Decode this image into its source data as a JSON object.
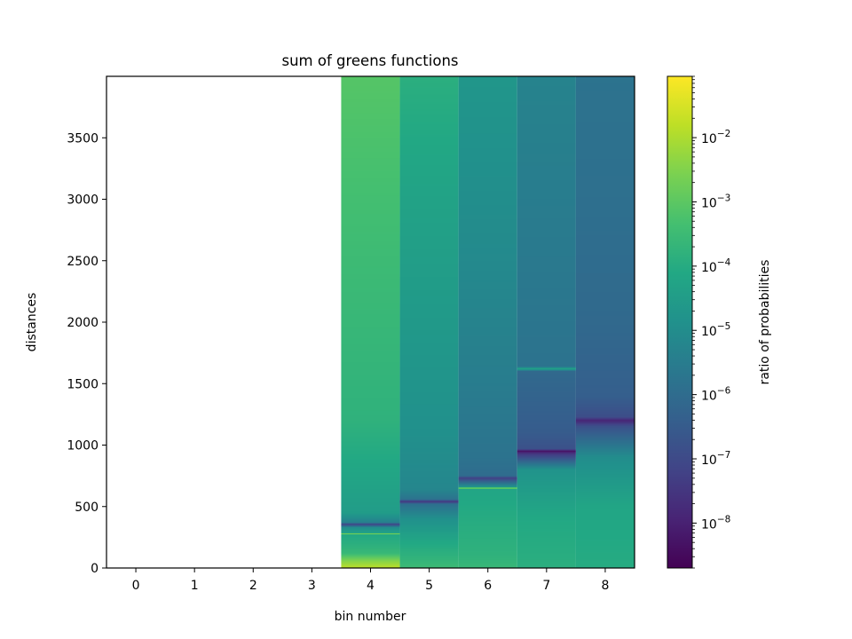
{
  "chart_data": {
    "type": "heatmap",
    "title": "sum of greens functions",
    "xlabel": "bin number",
    "ylabel": "distances",
    "x_ticks": [
      "0",
      "1",
      "2",
      "3",
      "4",
      "5",
      "6",
      "7",
      "8"
    ],
    "y_ticks": [
      "0",
      "500",
      "1000",
      "1500",
      "2000",
      "2500",
      "3000",
      "3500"
    ],
    "xlim": [
      -0.5,
      8.5
    ],
    "ylim": [
      0,
      4000
    ],
    "colormap": "viridis",
    "colorbar": {
      "label": "ratio of probabilities",
      "scale": "log",
      "range": [
        2e-09,
        0.09
      ],
      "ticks": [
        {
          "base": "10",
          "exp": "−2",
          "value": 0.01
        },
        {
          "base": "10",
          "exp": "−3",
          "value": 0.001
        },
        {
          "base": "10",
          "exp": "−4",
          "value": 0.0001
        },
        {
          "base": "10",
          "exp": "−5",
          "value": 1e-05
        },
        {
          "base": "10",
          "exp": "−6",
          "value": 1e-06
        },
        {
          "base": "10",
          "exp": "−7",
          "value": 1e-07
        },
        {
          "base": "10",
          "exp": "−8",
          "value": 1e-08
        }
      ]
    },
    "columns": [
      {
        "bin": 4,
        "profile": [
          [
            0,
            -1.8
          ],
          [
            60,
            -2.5
          ],
          [
            120,
            -3.6
          ],
          [
            200,
            -3.9
          ],
          [
            270,
            -4.1
          ],
          [
            280,
            -2.3
          ],
          [
            285,
            -4.3
          ],
          [
            330,
            -5.0
          ],
          [
            355,
            -7.2
          ],
          [
            370,
            -5.4
          ],
          [
            450,
            -4.5
          ],
          [
            1200,
            -3.8
          ],
          [
            2500,
            -3.5
          ],
          [
            4000,
            -3.1
          ]
        ]
      },
      {
        "bin": 5,
        "profile": [
          [
            0,
            -3.5
          ],
          [
            60,
            -3.7
          ],
          [
            200,
            -4.1
          ],
          [
            400,
            -4.9
          ],
          [
            520,
            -5.9
          ],
          [
            540,
            -7.5
          ],
          [
            560,
            -5.8
          ],
          [
            640,
            -5.2
          ],
          [
            1100,
            -4.9
          ],
          [
            2000,
            -4.6
          ],
          [
            3000,
            -4.3
          ],
          [
            4000,
            -3.9
          ]
        ]
      },
      {
        "bin": 6,
        "profile": [
          [
            0,
            -3.6
          ],
          [
            100,
            -3.8
          ],
          [
            400,
            -4.0
          ],
          [
            640,
            -4.2
          ],
          [
            650,
            -2.4
          ],
          [
            660,
            -4.8
          ],
          [
            710,
            -6.5
          ],
          [
            730,
            -7.3
          ],
          [
            750,
            -6.0
          ],
          [
            900,
            -5.8
          ],
          [
            1500,
            -5.5
          ],
          [
            2500,
            -5.1
          ],
          [
            4000,
            -4.7
          ]
        ]
      },
      {
        "bin": 7,
        "profile": [
          [
            0,
            -3.9
          ],
          [
            400,
            -4.1
          ],
          [
            800,
            -4.8
          ],
          [
            930,
            -7.5
          ],
          [
            950,
            -8.3
          ],
          [
            970,
            -6.8
          ],
          [
            1100,
            -6.5
          ],
          [
            1600,
            -6.1
          ],
          [
            1620,
            -4.3
          ],
          [
            1640,
            -5.8
          ],
          [
            2500,
            -5.6
          ],
          [
            4000,
            -5.3
          ]
        ]
      },
      {
        "bin": 8,
        "profile": [
          [
            0,
            -4.0
          ],
          [
            500,
            -4.2
          ],
          [
            900,
            -5.0
          ],
          [
            1150,
            -6.8
          ],
          [
            1200,
            -7.9
          ],
          [
            1230,
            -6.9
          ],
          [
            1400,
            -6.4
          ],
          [
            2000,
            -6.1
          ],
          [
            3000,
            -5.9
          ],
          [
            4000,
            -5.8
          ]
        ]
      }
    ]
  }
}
